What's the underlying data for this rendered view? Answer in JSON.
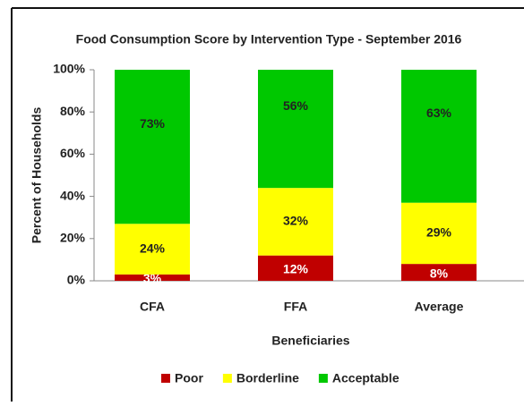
{
  "chart_data": {
    "type": "stacked_bar",
    "title": "Food Consumption Score by Intervention Type - September 2016",
    "x_label": "Beneficiaries",
    "y_label": "Percent of  Households",
    "categories": [
      "CFA",
      "FFA",
      "Average"
    ],
    "series": [
      {
        "name": "Poor",
        "color": "#c00000",
        "values": [
          3,
          12,
          8
        ],
        "value_labels": [
          "3%",
          "12%",
          "8%"
        ]
      },
      {
        "name": "Borderline",
        "color": "#ffff00",
        "values": [
          24,
          32,
          29
        ],
        "value_labels": [
          "24%",
          "32%",
          "29%"
        ]
      },
      {
        "name": "Acceptable",
        "color": "#00c800",
        "values": [
          73,
          56,
          63
        ],
        "value_labels": [
          "73%",
          "56%",
          "63%"
        ]
      }
    ],
    "ylim": [
      0,
      100
    ],
    "yticks": [
      {
        "value": 0,
        "label": "0%"
      },
      {
        "value": 20,
        "label": "20%"
      },
      {
        "value": 40,
        "label": "40%"
      },
      {
        "value": 60,
        "label": "60%"
      },
      {
        "value": 80,
        "label": "80%"
      },
      {
        "value": 100,
        "label": "100%"
      }
    ],
    "legend": "bottom"
  }
}
